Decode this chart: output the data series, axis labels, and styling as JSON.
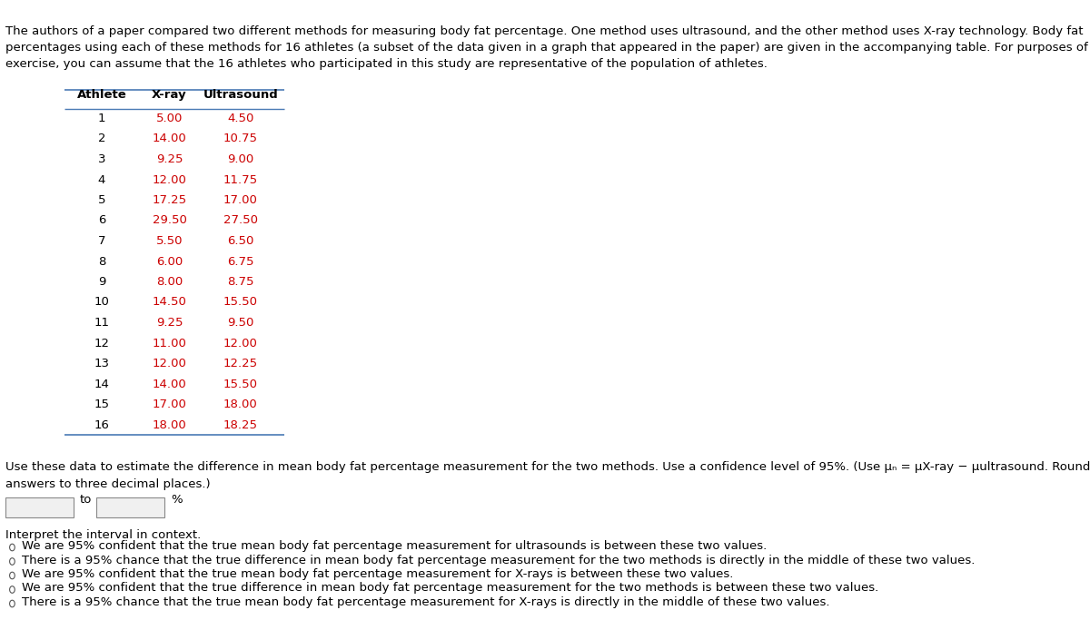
{
  "intro_text": "The authors of a paper compared two different methods for measuring body fat percentage. One method uses ultrasound, and the other method uses X-ray technology. Body fat\npercentages using each of these methods for 16 athletes (a subset of the data given in a graph that appeared in the paper) are given in the accompanying table. For purposes of this\nexercise, you can assume that the 16 athletes who participated in this study are representative of the population of athletes.",
  "table_header": [
    "Athlete",
    "X-ray",
    "Ultrasound"
  ],
  "athletes": [
    1,
    2,
    3,
    4,
    5,
    6,
    7,
    8,
    9,
    10,
    11,
    12,
    13,
    14,
    15,
    16
  ],
  "xray": [
    5.0,
    14.0,
    9.25,
    12.0,
    17.25,
    29.5,
    5.5,
    6.0,
    8.0,
    14.5,
    9.25,
    11.0,
    12.0,
    14.0,
    17.0,
    18.0
  ],
  "ultrasound": [
    4.5,
    10.75,
    9.0,
    11.75,
    17.0,
    27.5,
    6.5,
    6.75,
    8.75,
    15.5,
    9.5,
    12.0,
    12.25,
    15.5,
    18.0,
    18.25
  ],
  "data_color": "#cc0000",
  "header_color": "#000000",
  "athlete_color": "#000000",
  "question_text": "Use these data to estimate the difference in mean body fat percentage measurement for the two methods. Use a confidence level of 95%. (Use μₙ = μX-ray − μultrasound. Round your\nanswers to three decimal places.)",
  "input_label": "to",
  "input_unit": "%",
  "interpret_label": "Interpret the interval in context.",
  "options": [
    "We are 95% confident that the true mean body fat percentage measurement for ultrasounds is between these two values.",
    "There is a 95% chance that the true difference in mean body fat percentage measurement for the two methods is directly in the middle of these two values.",
    "We are 95% confident that the true mean body fat percentage measurement for X-rays is between these two values.",
    "We are 95% confident that the true difference in mean body fat percentage measurement for the two methods is between these two values.",
    "There is a 95% chance that the true mean body fat percentage measurement for X-rays is directly in the middle of these two values."
  ],
  "bg_color": "#ffffff",
  "text_color": "#000000",
  "font_size": 9.5,
  "table_line_color": "#4a7ab5"
}
